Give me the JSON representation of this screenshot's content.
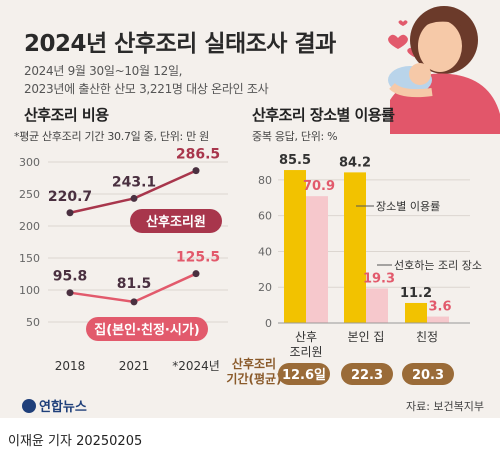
{
  "title": "2024년 산후조리 실태조사 결과",
  "subtitle_line1": "2024년 9월 30일~10월 12일,",
  "subtitle_line2": "2023년에 출산한 산모 3,221명 대상 온라인 조사",
  "logo_text": "연합뉴스",
  "source": "자료: 보건복지부",
  "footer": "이재윤 기자  20250205",
  "colors": {
    "dark_red": "#a8364c",
    "pink": "#e25a6c",
    "yellow": "#f2c200",
    "light_pink": "#f6c8cc",
    "text_brown": "#8a5a2a",
    "pill": "#9a6b38"
  },
  "chart_data": [
    {
      "type": "line",
      "title": "산후조리 비용",
      "subtitle": "*평균 산후조리 기간 30.7일 중, 단위: 만 원",
      "x": [
        "2018",
        "2021",
        "*2024년"
      ],
      "ylim": [
        50,
        300
      ],
      "yticks": [
        "300",
        "250",
        "200",
        "150",
        "100",
        "50"
      ],
      "series": [
        {
          "name": "산후조리원",
          "values": [
            220.7,
            243.1,
            286.5
          ],
          "labels": [
            "220.7",
            "243.1",
            "286.5"
          ]
        },
        {
          "name": "집(본인·친정·시가)",
          "values": [
            95.8,
            81.5,
            125.5
          ],
          "labels": [
            "95.8",
            "81.5",
            "125.5"
          ]
        }
      ]
    },
    {
      "type": "bar",
      "title": "산후조리 장소별 이용률",
      "subtitle": "중복 응답, 단위: %",
      "categories": [
        [
          "산후",
          "조리원"
        ],
        [
          "본인 집"
        ],
        [
          "친정"
        ]
      ],
      "ylim": [
        0,
        90
      ],
      "yticks": [
        "80",
        "60",
        "40",
        "20",
        "0"
      ],
      "series": [
        {
          "name": "장소별 이용률",
          "values": [
            85.5,
            84.2,
            11.2
          ],
          "labels": [
            "85.5",
            "84.2",
            "11.2"
          ]
        },
        {
          "name": "선호하는 조리 장소",
          "values": [
            70.9,
            19.3,
            3.6
          ],
          "labels": [
            "70.9",
            "19.3",
            "3.6"
          ]
        }
      ],
      "period_label": [
        "산후조리",
        "기간(평균)"
      ],
      "period_values": [
        "12.6일",
        "22.3",
        "20.3"
      ]
    }
  ]
}
